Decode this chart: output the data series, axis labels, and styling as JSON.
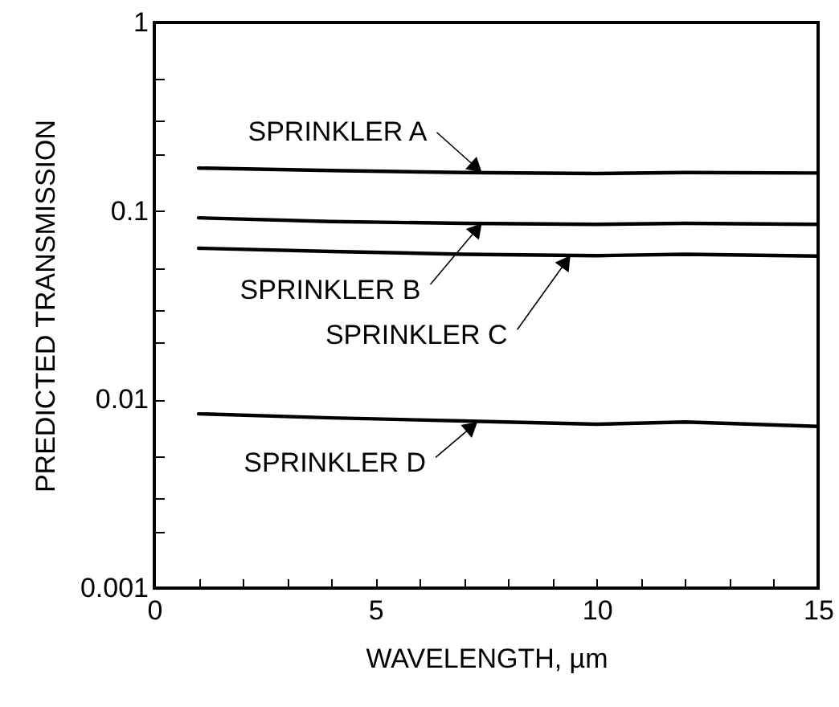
{
  "chart_data": {
    "type": "line",
    "xlabel": "WAVELENGTH, µm",
    "ylabel": "PREDICTED TRANSMISSION",
    "log": "y",
    "grid": false,
    "marker": "none",
    "line_style": "solid",
    "xlim": [
      0,
      15
    ],
    "ylim": [
      0.001,
      1
    ],
    "xticks": [
      0,
      {
        "value": 1,
        "label": null
      },
      {
        "value": 2,
        "label": null
      },
      {
        "value": 3,
        "label": null
      },
      {
        "value": 4,
        "label": null
      },
      5,
      {
        "value": 6,
        "label": null
      },
      {
        "value": 7,
        "label": null
      },
      {
        "value": 8,
        "label": null
      },
      {
        "value": 9,
        "label": null
      },
      10,
      {
        "value": 11,
        "label": null
      },
      {
        "value": 12,
        "label": null
      },
      {
        "value": 13,
        "label": null
      },
      {
        "value": 14,
        "label": null
      },
      15
    ],
    "yticks": [
      0.001,
      {
        "value": 0.002,
        "label": null
      },
      {
        "value": 0.003,
        "label": null
      },
      {
        "value": 0.005,
        "label": null
      },
      0.01,
      {
        "value": 0.02,
        "label": null
      },
      {
        "value": 0.03,
        "label": null
      },
      {
        "value": 0.05,
        "label": null
      },
      0.1,
      {
        "value": 0.2,
        "label": null
      },
      {
        "value": 0.3,
        "label": null
      },
      {
        "value": 0.5,
        "label": null
      },
      1
    ],
    "series": [
      {
        "color": "#000000",
        "x": [
          1,
          4,
          7,
          10,
          12,
          15
        ],
        "values": [
          0.169,
          0.164,
          0.16,
          0.158,
          0.16,
          0.159
        ]
      },
      {
        "color": "#000000",
        "x": [
          1,
          4,
          7,
          10,
          12,
          15
        ],
        "values": [
          0.092,
          0.088,
          0.086,
          0.085,
          0.086,
          0.085
        ]
      },
      {
        "color": "#000000",
        "x": [
          1,
          4,
          7,
          10,
          12,
          15
        ],
        "values": [
          0.0635,
          0.061,
          0.059,
          0.058,
          0.059,
          0.0577
        ]
      },
      {
        "color": "#000000",
        "x": [
          1,
          4,
          7,
          10,
          12,
          15
        ],
        "values": [
          0.0084,
          0.008,
          0.0077,
          0.0074,
          0.0076,
          0.0072
        ]
      }
    ],
    "annotations": [
      {
        "text": "SPRINKLER A",
        "x": 7.4,
        "y": 0.16
      },
      {
        "text": "SPRINKLER B",
        "x": 7.4,
        "y": 0.086
      },
      {
        "text": "SPRINKLER C",
        "x": 9.4,
        "y": 0.058
      },
      {
        "text": "SPRINKLER D",
        "x": 7.3,
        "y": 0.0076
      }
    ]
  }
}
